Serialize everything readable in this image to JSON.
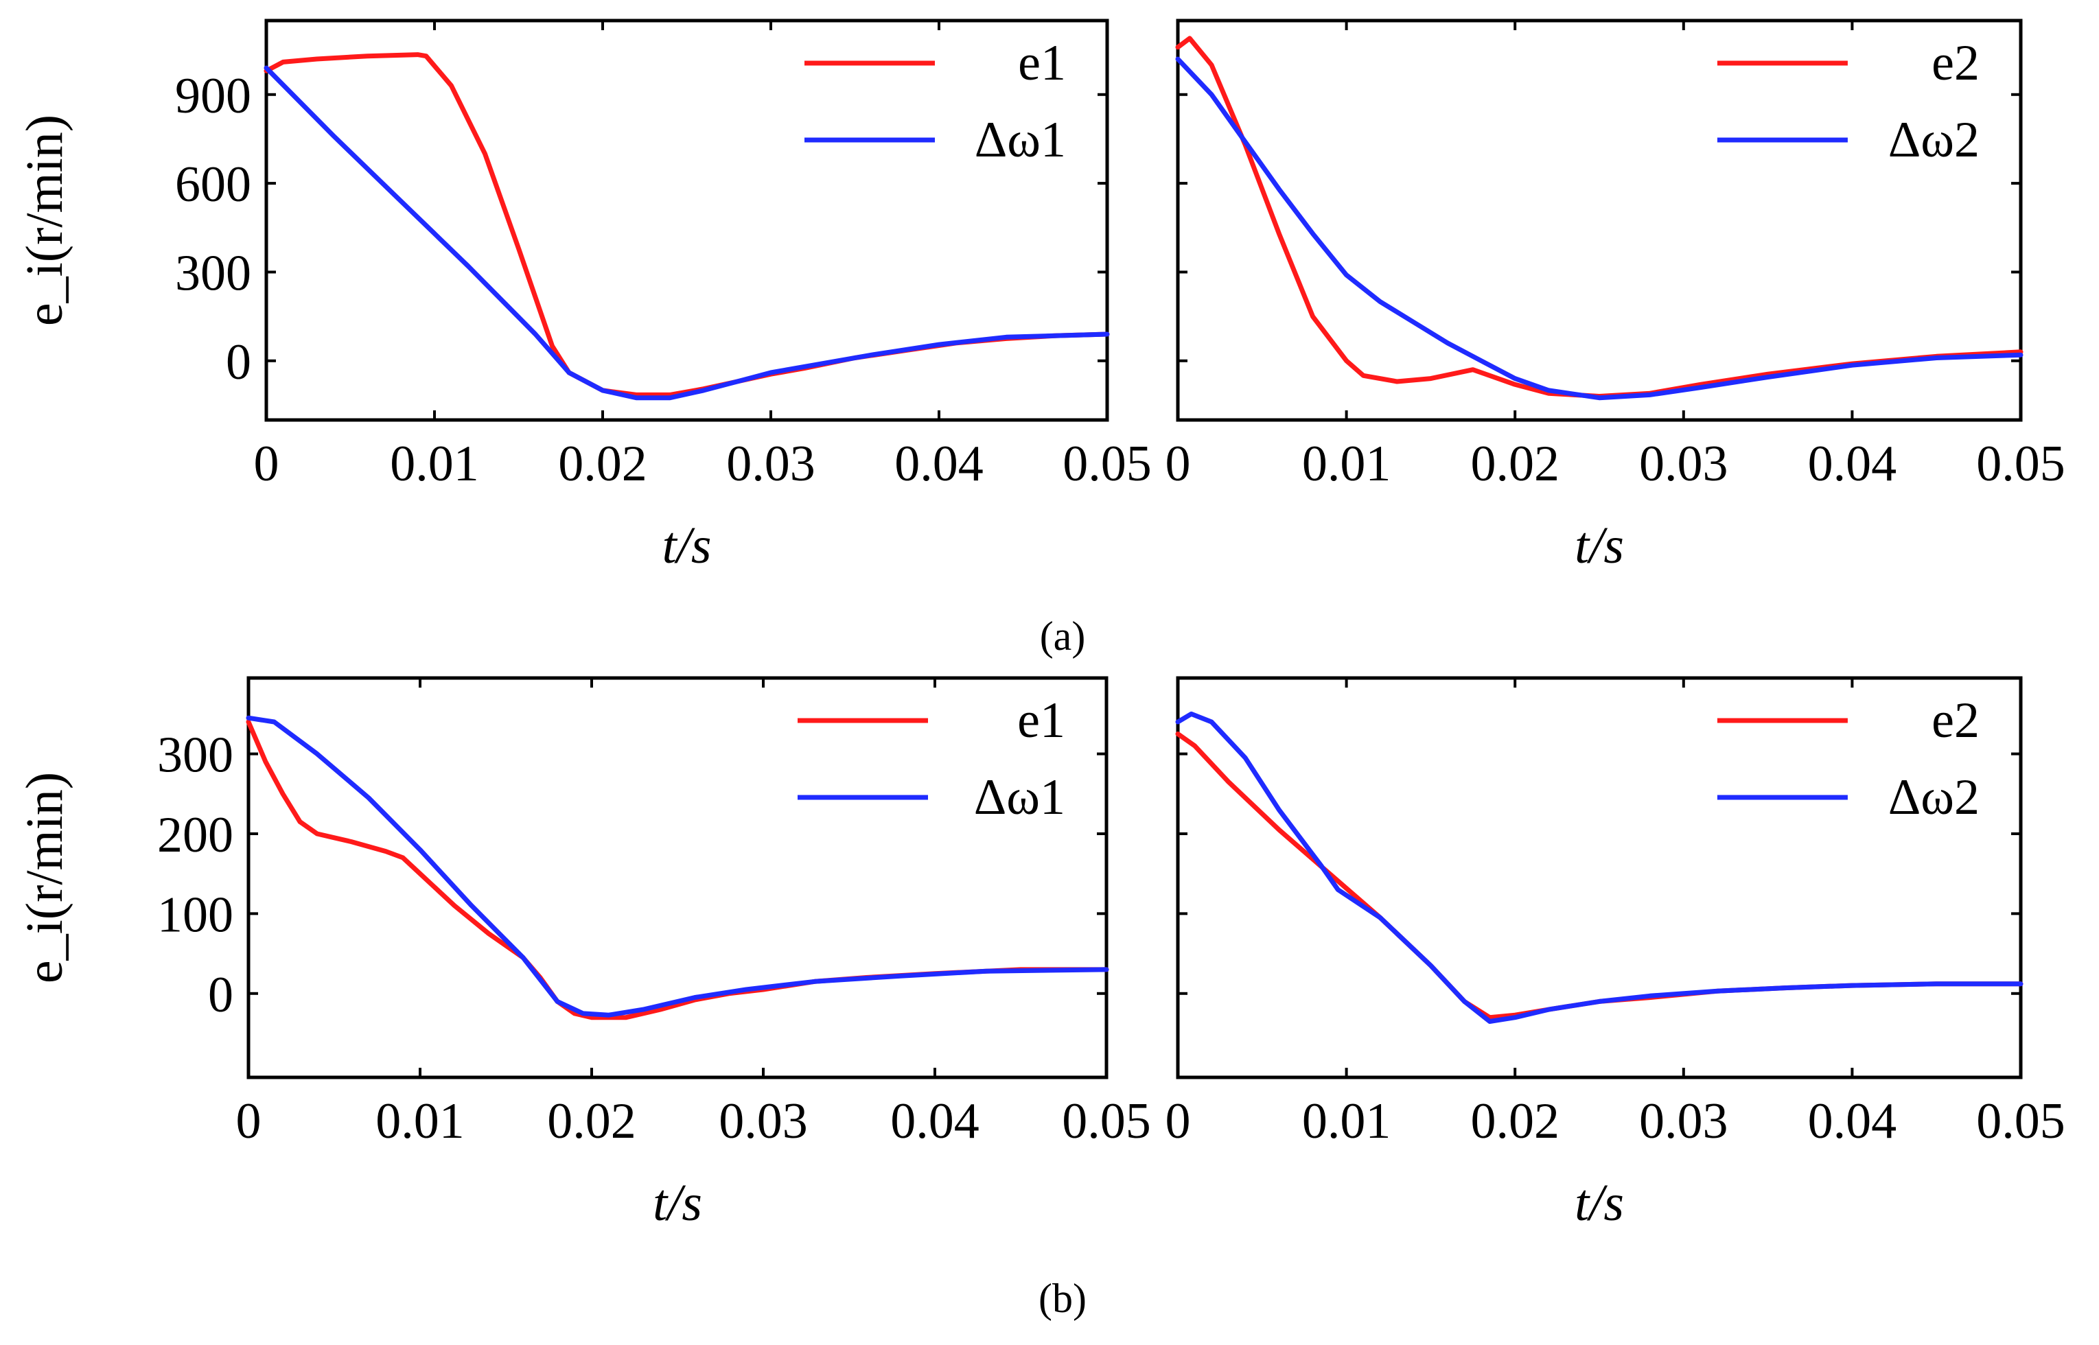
{
  "colors": {
    "red": "#ff1a1a",
    "blue": "#1f2bff"
  },
  "captions": [
    "(a)",
    "(b)"
  ],
  "chart_data": [
    {
      "type": "line",
      "panel": "a-left",
      "xlabel": "t/s",
      "ylabel": "e_i(r/min)",
      "xlim": [
        0,
        0.05
      ],
      "ylim": [
        -200,
        1150
      ],
      "xticks": [
        "0",
        "0.01",
        "0.02",
        "0.03",
        "0.04",
        "0.05"
      ],
      "yticks": [
        "0",
        "300",
        "600",
        "900"
      ],
      "legend": [
        "e1",
        "Δω1"
      ],
      "series": [
        {
          "name": "e1",
          "color": "red",
          "x": [
            0,
            0.001,
            0.003,
            0.006,
            0.009,
            0.0095,
            0.011,
            0.013,
            0.015,
            0.017,
            0.018,
            0.02,
            0.022,
            0.024,
            0.026,
            0.028,
            0.03,
            0.032,
            0.035,
            0.038,
            0.041,
            0.044,
            0.047,
            0.05
          ],
          "y": [
            980,
            1010,
            1020,
            1030,
            1035,
            1030,
            930,
            700,
            380,
            50,
            -40,
            -100,
            -115,
            -115,
            -95,
            -70,
            -45,
            -25,
            10,
            35,
            60,
            75,
            85,
            90
          ]
        },
        {
          "name": "Δω1",
          "color": "blue",
          "x": [
            0,
            0.004,
            0.008,
            0.012,
            0.016,
            0.018,
            0.02,
            0.022,
            0.024,
            0.026,
            0.028,
            0.03,
            0.033,
            0.036,
            0.04,
            0.044,
            0.05
          ],
          "y": [
            990,
            760,
            540,
            320,
            90,
            -40,
            -100,
            -125,
            -125,
            -100,
            -70,
            -40,
            -10,
            20,
            55,
            80,
            90
          ]
        }
      ]
    },
    {
      "type": "line",
      "panel": "a-right",
      "xlabel": "t/s",
      "ylabel": "",
      "xlim": [
        0,
        0.05
      ],
      "ylim": [
        -200,
        1150
      ],
      "xticks": [
        "0",
        "0.01",
        "0.02",
        "0.03",
        "0.04",
        "0.05"
      ],
      "yticks": [],
      "legend": [
        "e2",
        "Δω2"
      ],
      "series": [
        {
          "name": "e2",
          "color": "red",
          "x": [
            0,
            0.0007,
            0.002,
            0.004,
            0.006,
            0.008,
            0.01,
            0.011,
            0.013,
            0.015,
            0.0175,
            0.02,
            0.022,
            0.025,
            0.028,
            0.031,
            0.035,
            0.04,
            0.045,
            0.05
          ],
          "y": [
            1060,
            1090,
            1000,
            730,
            430,
            150,
            0,
            -50,
            -70,
            -60,
            -30,
            -80,
            -110,
            -120,
            -110,
            -80,
            -45,
            -10,
            15,
            30
          ]
        },
        {
          "name": "Δω2",
          "color": "blue",
          "x": [
            0,
            0.002,
            0.004,
            0.006,
            0.008,
            0.01,
            0.012,
            0.014,
            0.016,
            0.018,
            0.02,
            0.022,
            0.025,
            0.028,
            0.031,
            0.035,
            0.04,
            0.045,
            0.05
          ],
          "y": [
            1020,
            900,
            740,
            580,
            430,
            290,
            200,
            130,
            60,
            0,
            -60,
            -100,
            -125,
            -115,
            -90,
            -55,
            -15,
            10,
            20
          ]
        }
      ]
    },
    {
      "type": "line",
      "panel": "b-left",
      "xlabel": "t/s",
      "ylabel": "e_i(r/min)",
      "xlim": [
        0,
        0.05
      ],
      "ylim": [
        -105,
        395
      ],
      "xticks": [
        "0",
        "0.01",
        "0.02",
        "0.03",
        "0.04",
        "0.05"
      ],
      "yticks": [
        "0",
        "100",
        "200",
        "300"
      ],
      "legend": [
        "e1",
        "Δω1"
      ],
      "series": [
        {
          "name": "e1",
          "color": "red",
          "x": [
            0,
            0.001,
            0.002,
            0.003,
            0.004,
            0.005,
            0.006,
            0.008,
            0.009,
            0.01,
            0.012,
            0.014,
            0.016,
            0.017,
            0.018,
            0.019,
            0.02,
            0.022,
            0.024,
            0.026,
            0.028,
            0.03,
            0.033,
            0.036,
            0.04,
            0.045,
            0.05
          ],
          "y": [
            340,
            290,
            250,
            215,
            200,
            195,
            190,
            178,
            170,
            150,
            110,
            75,
            45,
            20,
            -10,
            -25,
            -30,
            -30,
            -20,
            -8,
            0,
            5,
            15,
            20,
            25,
            30,
            30
          ]
        },
        {
          "name": "Δω1",
          "color": "blue",
          "x": [
            0,
            0.0015,
            0.004,
            0.007,
            0.01,
            0.013,
            0.016,
            0.018,
            0.0195,
            0.021,
            0.023,
            0.026,
            0.029,
            0.033,
            0.038,
            0.043,
            0.05
          ],
          "y": [
            345,
            340,
            300,
            245,
            180,
            110,
            45,
            -10,
            -25,
            -27,
            -20,
            -5,
            5,
            15,
            22,
            28,
            30
          ]
        }
      ]
    },
    {
      "type": "line",
      "panel": "b-right",
      "xlabel": "t/s",
      "ylabel": "",
      "xlim": [
        0,
        0.05
      ],
      "ylim": [
        -105,
        395
      ],
      "xticks": [
        "0",
        "0.01",
        "0.02",
        "0.03",
        "0.04",
        "0.05"
      ],
      "yticks": [],
      "legend": [
        "e2",
        "Δω2"
      ],
      "series": [
        {
          "name": "e2",
          "color": "red",
          "x": [
            0,
            0.001,
            0.003,
            0.006,
            0.009,
            0.012,
            0.015,
            0.017,
            0.0185,
            0.02,
            0.022,
            0.025,
            0.028,
            0.032,
            0.036,
            0.04,
            0.045,
            0.05
          ],
          "y": [
            325,
            310,
            265,
            205,
            150,
            95,
            35,
            -10,
            -30,
            -27,
            -20,
            -10,
            -5,
            3,
            7,
            10,
            12,
            12
          ]
        },
        {
          "name": "Δω2",
          "color": "blue",
          "x": [
            0,
            0.0008,
            0.002,
            0.004,
            0.006,
            0.0085,
            0.0095,
            0.012,
            0.015,
            0.017,
            0.0185,
            0.02,
            0.022,
            0.025,
            0.028,
            0.032,
            0.036,
            0.04,
            0.045,
            0.05
          ],
          "y": [
            340,
            350,
            340,
            295,
            230,
            160,
            130,
            95,
            35,
            -10,
            -35,
            -30,
            -20,
            -10,
            -3,
            3,
            7,
            10,
            12,
            12
          ]
        }
      ]
    }
  ]
}
